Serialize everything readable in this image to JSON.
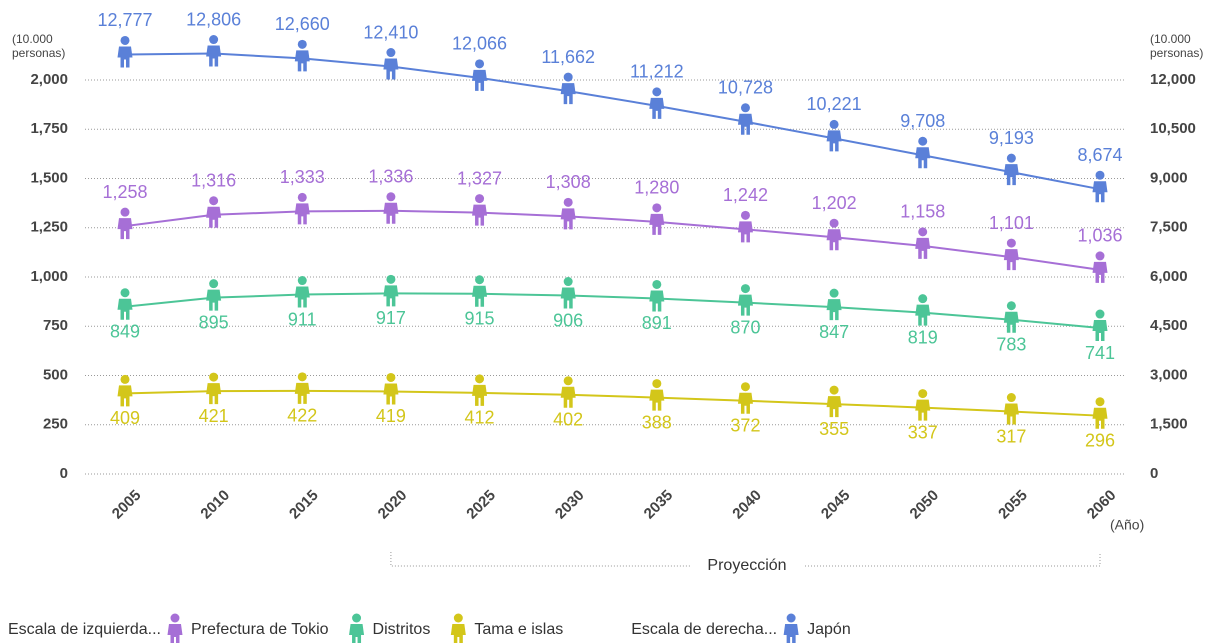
{
  "chart_data": {
    "type": "line",
    "categories": [
      "2005",
      "2010",
      "2015",
      "2020",
      "2025",
      "2030",
      "2035",
      "2040",
      "2045",
      "2050",
      "2055",
      "2060"
    ],
    "xlabel": "(Año)",
    "ylabel": [
      "(10.000",
      "personas)"
    ],
    "y2label": [
      "(10.000",
      "personas)"
    ],
    "ylim": [
      0,
      2000
    ],
    "yticks": [
      0,
      250,
      500,
      750,
      {
        "value": 1000,
        "label": "1,000"
      },
      {
        "value": 1250,
        "label": "1,250"
      },
      {
        "value": 1500,
        "label": "1,500"
      },
      {
        "value": 1750,
        "label": "1,750"
      },
      {
        "value": 2000,
        "label": "2,000"
      }
    ],
    "y2lim": [
      0,
      12000
    ],
    "y2ticks": [
      0,
      {
        "value": 1500,
        "label": "1,500"
      },
      {
        "value": 3000,
        "label": "3,000"
      },
      {
        "value": 4500,
        "label": "4,500"
      },
      {
        "value": 6000,
        "label": "6,000"
      },
      {
        "value": 7500,
        "label": "7,500"
      },
      {
        "value": 9000,
        "label": "9,000"
      },
      {
        "value": 10500,
        "label": "10,500"
      },
      {
        "value": 12000,
        "label": "12,000"
      }
    ],
    "grid": true,
    "annotation": "Proyección",
    "left_scale_label": "Escala de izquierda...",
    "right_scale_label": "Escala de derecha...",
    "series": [
      {
        "name": "Prefectura de Tokio",
        "color": "#a66fd6",
        "values": [
          1258,
          1316,
          1333,
          1336,
          1327,
          1308,
          1280,
          1242,
          1202,
          1158,
          1101,
          1036
        ],
        "value_labels": [
          "1,258",
          "1,316",
          "1,333",
          "1,336",
          "1,327",
          "1,308",
          "1,280",
          "1,242",
          "1,202",
          "1,158",
          "1,101",
          "1,036"
        ]
      },
      {
        "name": "Distritos",
        "color": "#4cc597",
        "values": [
          849,
          895,
          911,
          917,
          915,
          906,
          891,
          870,
          847,
          819,
          783,
          741
        ]
      },
      {
        "name": "Tama e islas",
        "color": "#d3c61a",
        "values": [
          409,
          421,
          422,
          419,
          412,
          402,
          388,
          372,
          355,
          337,
          317,
          296
        ]
      },
      {
        "name": "Japón",
        "color": "#5a80d8",
        "axis": "y2",
        "values": [
          12777,
          12806,
          12660,
          12410,
          12066,
          11662,
          11212,
          10728,
          10221,
          9708,
          9193,
          8674
        ],
        "value_labels": [
          "12,777",
          "12,806",
          "12,660",
          "12,410",
          "12,066",
          "11,662",
          "11,212",
          "10,728",
          "10,221",
          "9,708",
          "9,193",
          "8,674"
        ]
      }
    ]
  }
}
